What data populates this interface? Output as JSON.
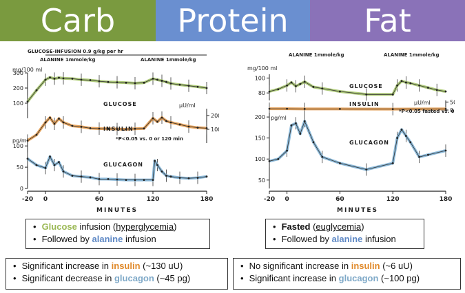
{
  "banners": {
    "carb": {
      "label": "Carb",
      "color": "#7a9a3f"
    },
    "protein": {
      "label": "Protein",
      "color": "#6a8fd0"
    },
    "fat": {
      "label": "Fat",
      "color": "#8a72b8"
    }
  },
  "colors": {
    "glucose": "#a5c46b",
    "insulin": "#e39a4c",
    "glucagon": "#7fb3d6"
  },
  "chart_data": [
    {
      "type": "line",
      "xlabel": "MINUTES",
      "x_ticks": [
        -20,
        0,
        60,
        120,
        180
      ],
      "annotations": {
        "infusion": "GLUCOSE-INFUSION  0.9 g/kg per hr",
        "alanine1": "ALANINE  1mmole/kg",
        "alanine2": "ALANINE  1mmole/kg",
        "glucose_unit": "mg/100 ml",
        "insulin_unit": "µU/ml",
        "glucagon_unit": "pg/ml",
        "pvalue": "*P<0.05 vs. 0 or 120 min"
      },
      "series": [
        {
          "name": "GLUCOSE",
          "y_ticks": [
            100,
            200,
            300
          ],
          "x": [
            -20,
            -10,
            0,
            5,
            10,
            15,
            20,
            30,
            40,
            50,
            60,
            70,
            80,
            90,
            100,
            110,
            120,
            125,
            130,
            135,
            140,
            150,
            160,
            170,
            180
          ],
          "values": [
            110,
            185,
            255,
            270,
            262,
            268,
            264,
            262,
            255,
            252,
            245,
            240,
            238,
            235,
            232,
            235,
            262,
            255,
            248,
            240,
            230,
            222,
            215,
            208,
            200
          ]
        },
        {
          "name": "INSULIN",
          "y_ticks": [
            100,
            200
          ],
          "x": [
            -20,
            -10,
            0,
            5,
            10,
            15,
            20,
            30,
            40,
            50,
            60,
            70,
            80,
            90,
            100,
            110,
            120,
            125,
            130,
            135,
            140,
            150,
            160,
            170,
            180
          ],
          "values": [
            18,
            60,
            150,
            185,
            140,
            178,
            150,
            125,
            118,
            108,
            105,
            104,
            102,
            100,
            104,
            106,
            180,
            155,
            185,
            160,
            150,
            135,
            120,
            112,
            108
          ]
        },
        {
          "name": "GLUCAGON",
          "y_ticks": [
            0,
            50,
            100
          ],
          "x": [
            -20,
            -10,
            0,
            5,
            10,
            15,
            20,
            30,
            40,
            50,
            60,
            70,
            80,
            90,
            100,
            110,
            120,
            122,
            125,
            130,
            135,
            140,
            150,
            160,
            170,
            180
          ],
          "values": [
            70,
            55,
            48,
            75,
            55,
            62,
            40,
            30,
            28,
            26,
            22,
            22,
            21,
            20,
            20,
            20,
            20,
            65,
            55,
            40,
            30,
            28,
            25,
            24,
            25,
            28
          ]
        }
      ]
    },
    {
      "type": "line",
      "xlabel": "MINUTES",
      "x_ticks": [
        -20,
        0,
        60,
        120,
        180
      ],
      "annotations": {
        "alanine1": "ALANINE  1mmole/kg",
        "alanine2": "ALANINE  1mmole/kg",
        "glucose_unit": "mg/100 ml",
        "insulin_unit": "µU/ml",
        "glucagon_unit": "pg/ml",
        "pvalue": "*P<0.05 fasted vs. 0 or 120 min"
      },
      "series": [
        {
          "name": "GLUCOSE",
          "y_ticks": [
            80,
            100
          ],
          "x": [
            -20,
            -10,
            0,
            5,
            10,
            15,
            20,
            30,
            40,
            60,
            90,
            120,
            125,
            130,
            135,
            140,
            150,
            160,
            170,
            180
          ],
          "values": [
            82,
            85,
            90,
            94,
            89,
            92,
            95,
            88,
            86,
            82,
            78,
            78,
            90,
            96,
            94,
            93,
            90,
            87,
            84,
            82
          ]
        },
        {
          "name": "INSULIN",
          "y_ticks": [
            0,
            50
          ],
          "x": [
            -20,
            0,
            20,
            60,
            120,
            180
          ],
          "values": [
            8,
            8,
            7,
            7,
            6,
            7
          ]
        },
        {
          "name": "GLUCAGON",
          "y_ticks": [
            50,
            100,
            150,
            200
          ],
          "x": [
            -20,
            -10,
            0,
            5,
            10,
            15,
            20,
            30,
            40,
            60,
            90,
            120,
            125,
            130,
            135,
            140,
            150,
            160,
            180
          ],
          "values": [
            95,
            100,
            120,
            180,
            185,
            160,
            190,
            140,
            105,
            90,
            75,
            90,
            150,
            170,
            155,
            140,
            105,
            110,
            120
          ]
        }
      ]
    }
  ],
  "boxes": {
    "carb_cond": {
      "pre": "",
      "highlight": "Glucose",
      "mid": " infusion (",
      "term": "hyperglycemia",
      "post": ")",
      "line2_pre": "Followed by ",
      "line2_hl": "alanine",
      "line2_post": " infusion"
    },
    "fat_cond": {
      "bold": "Fasted",
      "mid": " (",
      "term": "euglycemia",
      "post": ")",
      "line2_pre": "Followed by ",
      "line2_hl": "alanine",
      "line2_post": " infusion"
    },
    "carb_result": {
      "l1_pre": "Significant increase in ",
      "l1_hl": "insulin",
      "l1_post": " (~130 uU)",
      "l2_pre": "Significant decrease in ",
      "l2_hl": "glucagon",
      "l2_post": " (~45 pg)"
    },
    "fat_result": {
      "l1_pre": "No significant increase in ",
      "l1_hl": "insulin",
      "l1_post": " (~6 uU)",
      "l2_pre": "Significant increase in ",
      "l2_hl": "glucagon",
      "l2_post": " (~100 pg)"
    }
  }
}
